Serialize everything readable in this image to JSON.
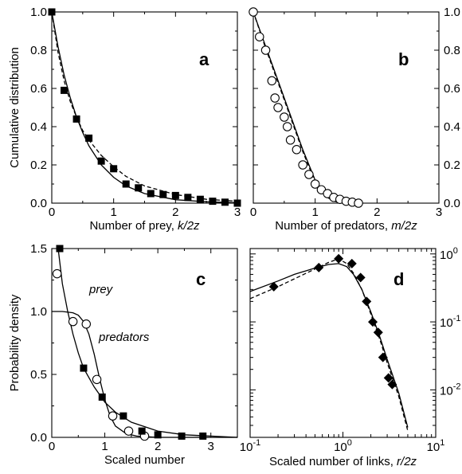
{
  "chart_data": [
    {
      "panel": "a",
      "type": "scatter",
      "xlim": [
        0,
        3
      ],
      "ylim": [
        0,
        1
      ],
      "xticks": [
        "0",
        "1",
        "2",
        "3"
      ],
      "yticks": [
        "0.0",
        "0.2",
        "0.4",
        "0.6",
        "0.8",
        "1.0"
      ],
      "xlabel_text": "Number of prey, ",
      "xlabel_var": "k/2z",
      "ylabel": "Cumulative distribution",
      "marker": "filled-square",
      "points": {
        "x": [
          0,
          0.2,
          0.4,
          0.6,
          0.8,
          1.0,
          1.2,
          1.4,
          1.6,
          1.8,
          2.0,
          2.2,
          2.4,
          2.6,
          2.8,
          3.0
        ],
        "y": [
          1.0,
          0.59,
          0.44,
          0.34,
          0.22,
          0.18,
          0.1,
          0.08,
          0.05,
          0.045,
          0.04,
          0.03,
          0.02,
          0.01,
          0.005,
          0.0
        ]
      },
      "solid_curve": {
        "x": [
          0,
          0.1,
          0.2,
          0.3,
          0.4,
          0.5,
          0.6,
          0.8,
          1.0,
          1.2,
          1.5,
          2.0,
          2.5,
          3.0
        ],
        "y": [
          1.0,
          0.82,
          0.67,
          0.55,
          0.45,
          0.37,
          0.3,
          0.2,
          0.135,
          0.09,
          0.05,
          0.018,
          0.007,
          0.002
        ]
      },
      "dashed_curve": {
        "x": [
          0,
          0.1,
          0.2,
          0.3,
          0.4,
          0.5,
          0.6,
          0.8,
          1.0,
          1.2,
          1.5,
          2.0,
          2.5,
          3.0
        ],
        "y": [
          1.0,
          0.79,
          0.64,
          0.53,
          0.45,
          0.38,
          0.33,
          0.25,
          0.19,
          0.14,
          0.09,
          0.045,
          0.02,
          0.01
        ]
      }
    },
    {
      "panel": "b",
      "type": "scatter",
      "xlim": [
        0,
        3
      ],
      "ylim": [
        0,
        1
      ],
      "xticks": [
        "0",
        "1",
        "2",
        "3"
      ],
      "yticks": [
        "0.0",
        "0.2",
        "0.4",
        "0.6",
        "0.8",
        "1.0"
      ],
      "xlabel_text": "Number of predators, ",
      "xlabel_var": "m/2z",
      "marker": "open-circle",
      "points": {
        "x": [
          0,
          0.1,
          0.2,
          0.3,
          0.35,
          0.4,
          0.5,
          0.55,
          0.6,
          0.7,
          0.8,
          0.9,
          1.0,
          1.1,
          1.2,
          1.3,
          1.4,
          1.5,
          1.6,
          1.7
        ],
        "y": [
          1.0,
          0.87,
          0.8,
          0.64,
          0.55,
          0.5,
          0.45,
          0.4,
          0.33,
          0.28,
          0.2,
          0.15,
          0.1,
          0.07,
          0.05,
          0.03,
          0.02,
          0.01,
          0.005,
          0.0
        ]
      },
      "solid_curve": {
        "x": [
          0,
          0.2,
          0.4,
          0.6,
          0.8,
          1.0,
          1.1,
          1.2,
          1.3,
          1.5,
          1.7
        ],
        "y": [
          1.0,
          0.82,
          0.64,
          0.46,
          0.28,
          0.12,
          0.06,
          0.03,
          0.01,
          0.0,
          0.0
        ]
      },
      "dashed_curve": {
        "x": [
          0,
          0.2,
          0.4,
          0.6,
          0.8,
          1.0,
          1.1,
          1.2,
          1.3,
          1.5,
          1.7
        ],
        "y": [
          1.0,
          0.81,
          0.63,
          0.45,
          0.27,
          0.11,
          0.06,
          0.03,
          0.01,
          0.0,
          0.0
        ]
      }
    },
    {
      "panel": "c",
      "type": "scatter",
      "xlim": [
        0,
        3.5
      ],
      "ylim": [
        0,
        1.5
      ],
      "xticks": [
        "0",
        "1",
        "2",
        "3"
      ],
      "yticks": [
        "0.0",
        "0.5",
        "1.0",
        "1.5"
      ],
      "xlabel_text": "Scaled number",
      "ylabel": "Probability density",
      "annotations": [
        "prey",
        "predators"
      ],
      "prey_points": {
        "marker": "filled-square",
        "x": [
          0.15,
          0.6,
          0.95,
          1.35,
          1.7,
          2.0,
          2.45,
          2.85
        ],
        "y": [
          1.5,
          0.55,
          0.32,
          0.17,
          0.05,
          0.02,
          0.01,
          0.01
        ]
      },
      "predator_points": {
        "marker": "open-circle",
        "x": [
          0.1,
          0.4,
          0.65,
          0.85,
          1.15,
          1.45,
          1.75
        ],
        "y": [
          1.3,
          0.92,
          0.9,
          0.46,
          0.17,
          0.05,
          0.01
        ]
      },
      "prey_curve": {
        "x": [
          0.12,
          0.2,
          0.3,
          0.4,
          0.5,
          0.6,
          0.8,
          1.0,
          1.2,
          1.5,
          2.0,
          2.5,
          3.0,
          3.5
        ],
        "y": [
          1.5,
          1.22,
          1.0,
          0.82,
          0.67,
          0.55,
          0.4,
          0.28,
          0.2,
          0.12,
          0.05,
          0.02,
          0.01,
          0.0
        ]
      },
      "predator_curve": {
        "x": [
          0,
          0.2,
          0.4,
          0.5,
          0.6,
          0.7,
          0.8,
          0.9,
          1.0,
          1.1,
          1.2,
          1.4,
          1.6,
          2.0,
          2.5,
          3.5
        ],
        "y": [
          1.0,
          1.0,
          0.99,
          0.97,
          0.92,
          0.82,
          0.66,
          0.47,
          0.3,
          0.17,
          0.09,
          0.03,
          0.01,
          0.0,
          0.0,
          0.0
        ]
      }
    },
    {
      "panel": "d",
      "type": "scatter",
      "xscale": "log",
      "yscale": "log",
      "xlim": [
        0.1,
        10
      ],
      "ylim": [
        0.002,
        1.2
      ],
      "xticks": [
        "10-1",
        "100",
        "101"
      ],
      "yticks": [
        "10-2",
        "10-1",
        "100"
      ],
      "xlabel_text": "Scaled number of links, ",
      "xlabel_var": "r/2z",
      "marker": "filled-diamond",
      "points": {
        "x": [
          0.18,
          0.55,
          0.9,
          1.25,
          1.55,
          1.8,
          2.1,
          2.4,
          2.7,
          3.1,
          3.4
        ],
        "y": [
          0.33,
          0.63,
          0.85,
          0.72,
          0.45,
          0.2,
          0.1,
          0.07,
          0.03,
          0.015,
          0.012
        ]
      },
      "solid_curve": {
        "x": [
          0.1,
          0.2,
          0.3,
          0.5,
          0.7,
          0.9,
          1.1,
          1.3,
          1.6,
          2.0,
          2.5,
          3.0,
          4.0,
          5.0
        ],
        "y": [
          0.28,
          0.4,
          0.5,
          0.62,
          0.7,
          0.72,
          0.65,
          0.5,
          0.3,
          0.14,
          0.06,
          0.028,
          0.009,
          0.0028
        ]
      },
      "dashed_curve": {
        "x": [
          0.1,
          0.2,
          0.3,
          0.5,
          0.7,
          0.9,
          1.1,
          1.3,
          1.6,
          2.0,
          2.5,
          3.0,
          4.0,
          5.0
        ],
        "y": [
          0.22,
          0.33,
          0.43,
          0.6,
          0.75,
          0.85,
          0.72,
          0.52,
          0.3,
          0.13,
          0.055,
          0.025,
          0.008,
          0.0025
        ]
      }
    }
  ]
}
